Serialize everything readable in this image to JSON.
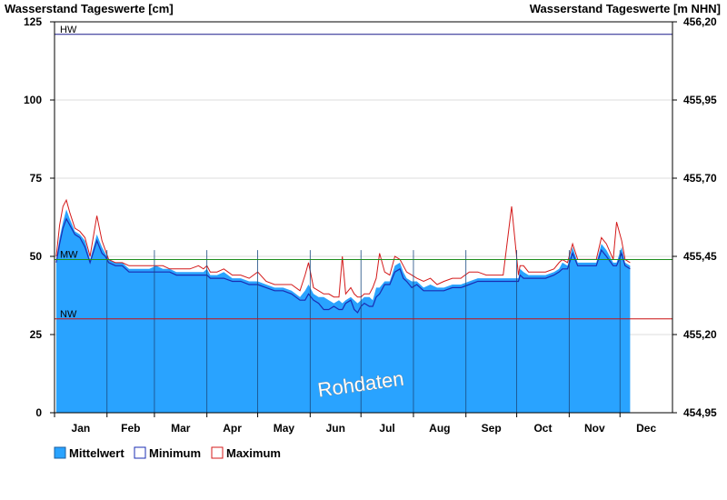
{
  "chart_data": {
    "type": "area",
    "title_left": "Wasserstand Tageswerte [cm]",
    "title_right": "Wasserstand Tageswerte [m NHN]",
    "ylim": [
      0,
      125
    ],
    "y_ticks": [
      0,
      25,
      50,
      75,
      100,
      125
    ],
    "y2_ticks": [
      "454,95",
      "455,20",
      "455,45",
      "455,70",
      "455,95",
      "456,20"
    ],
    "months": [
      "Jan",
      "Feb",
      "Mar",
      "Apr",
      "May",
      "Jun",
      "Jul",
      "Aug",
      "Sep",
      "Oct",
      "Nov",
      "Dec"
    ],
    "watermark": "Rohdaten",
    "reference_lines": [
      {
        "label": "HW",
        "value": 121,
        "color": "#1a1a8c"
      },
      {
        "label": "MW",
        "value": 49,
        "color": "#1f8f1f"
      },
      {
        "label": "NW",
        "value": 30,
        "color": "#cc1111"
      }
    ],
    "days_x": [
      1,
      3,
      5,
      7,
      9,
      12,
      15,
      18,
      21,
      25,
      28,
      30,
      32,
      36,
      40,
      44,
      48,
      52,
      56,
      60,
      64,
      68,
      72,
      76,
      80,
      85,
      88,
      90,
      92,
      96,
      100,
      105,
      110,
      115,
      120,
      125,
      130,
      135,
      140,
      145,
      148,
      150,
      153,
      156,
      159,
      162,
      165,
      168,
      170,
      172,
      175,
      177,
      179,
      181,
      183,
      186,
      188,
      190,
      192,
      195,
      198,
      201,
      204,
      206,
      208,
      211,
      214,
      218,
      222,
      226,
      230,
      235,
      240,
      245,
      250,
      255,
      260,
      265,
      270,
      274,
      275,
      277,
      280,
      285,
      290,
      295,
      298,
      300,
      303,
      306,
      309,
      312,
      315,
      318,
      320,
      323,
      326,
      330,
      332,
      335,
      337,
      340
    ],
    "series": [
      {
        "name": "Mittelwert",
        "color": "#29a3ff",
        "values": [
          49,
          56,
          61,
          65,
          62,
          58,
          57,
          55,
          49,
          57,
          53,
          51,
          49,
          48,
          48,
          46,
          46,
          46,
          46,
          47,
          46,
          46,
          45,
          45,
          45,
          45,
          45,
          46,
          44,
          44,
          45,
          43,
          43,
          42,
          42,
          41,
          40,
          40,
          39,
          37,
          39,
          41,
          38,
          37,
          37,
          36,
          35,
          36,
          35,
          36,
          37,
          36,
          35,
          36,
          37,
          37,
          36,
          40,
          40,
          42,
          42,
          47,
          48,
          45,
          43,
          42,
          42,
          40,
          41,
          40,
          40,
          41,
          41,
          42,
          43,
          43,
          43,
          43,
          43,
          43,
          46,
          45,
          44,
          44,
          44,
          45,
          46,
          48,
          47,
          53,
          48,
          48,
          48,
          48,
          48,
          54,
          52,
          48,
          48,
          53,
          48,
          47
        ]
      },
      {
        "name": "Minimum",
        "color": "#1a2db3",
        "values": [
          48,
          54,
          59,
          62,
          60,
          57,
          56,
          53,
          48,
          55,
          51,
          50,
          48,
          47,
          47,
          45,
          45,
          45,
          45,
          45,
          45,
          45,
          44,
          44,
          44,
          44,
          44,
          44,
          43,
          43,
          43,
          42,
          42,
          41,
          41,
          40,
          39,
          39,
          38,
          36,
          36,
          38,
          36,
          35,
          33,
          33,
          34,
          33,
          33,
          35,
          36,
          33,
          32,
          34,
          35,
          34,
          34,
          37,
          38,
          41,
          41,
          45,
          46,
          43,
          42,
          40,
          41,
          39,
          39,
          39,
          39,
          40,
          40,
          41,
          42,
          42,
          42,
          42,
          42,
          42,
          44,
          43,
          43,
          43,
          43,
          44,
          45,
          46,
          46,
          51,
          47,
          47,
          47,
          47,
          47,
          52,
          50,
          47,
          47,
          51,
          47,
          46
        ]
      },
      {
        "name": "Maximum",
        "color": "#d41a1a",
        "values": [
          50,
          60,
          66,
          68,
          64,
          59,
          58,
          56,
          50,
          63,
          55,
          52,
          49,
          48,
          48,
          47,
          47,
          47,
          47,
          47,
          47,
          46,
          46,
          46,
          46,
          47,
          46,
          47,
          45,
          45,
          46,
          44,
          44,
          43,
          45,
          42,
          41,
          41,
          41,
          39,
          44,
          48,
          40,
          39,
          38,
          38,
          37,
          37,
          50,
          38,
          40,
          38,
          37,
          37,
          38,
          38,
          40,
          43,
          51,
          45,
          44,
          50,
          49,
          47,
          45,
          44,
          43,
          42,
          43,
          41,
          42,
          43,
          43,
          45,
          45,
          44,
          44,
          44,
          66,
          44,
          47,
          47,
          45,
          45,
          45,
          46,
          48,
          49,
          48,
          54,
          49,
          49,
          49,
          49,
          49,
          56,
          54,
          49,
          61,
          55,
          49,
          48
        ]
      }
    ]
  }
}
